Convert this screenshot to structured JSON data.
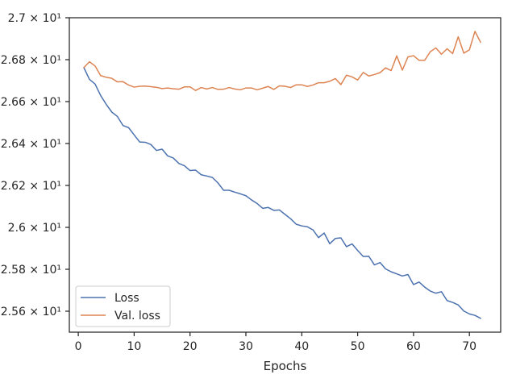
{
  "chart_data": {
    "type": "line",
    "title": "",
    "xlabel": "Epochs",
    "ylabel": "",
    "xlim": [
      -1.6,
      75.6
    ],
    "ylim": [
      25.5,
      27.0
    ],
    "xticks": [
      0,
      10,
      20,
      30,
      40,
      50,
      60,
      70
    ],
    "xtick_labels": [
      "0",
      "10",
      "20",
      "30",
      "40",
      "50",
      "60",
      "70"
    ],
    "yticks": [
      25.6,
      25.8,
      26.0,
      26.2,
      26.4,
      26.6,
      26.8,
      27.0
    ],
    "ytick_labels": [
      "2.56 × 10¹",
      "2.58 × 10¹",
      "2.6 × 10¹",
      "2.62 × 10¹",
      "2.64 × 10¹",
      "2.66 × 10¹",
      "2.68 × 10¹",
      "2.7 × 10¹"
    ],
    "grid": false,
    "legend_position": "lower-left",
    "x": [
      1,
      2,
      3,
      4,
      5,
      6,
      7,
      8,
      9,
      10,
      11,
      12,
      13,
      14,
      15,
      16,
      17,
      18,
      19,
      20,
      21,
      22,
      23,
      24,
      25,
      26,
      27,
      28,
      29,
      30,
      31,
      32,
      33,
      34,
      35,
      36,
      37,
      38,
      39,
      40,
      41,
      42,
      43,
      44,
      45,
      46,
      47,
      48,
      49,
      50,
      51,
      52,
      53,
      54,
      55,
      56,
      57,
      58,
      59,
      60,
      61,
      62,
      63,
      64,
      65,
      66,
      67,
      68,
      69,
      70,
      71,
      72
    ],
    "series": [
      {
        "name": "Loss",
        "color": "#4c72b0",
        "values": [
          26.762,
          26.706,
          26.684,
          26.629,
          26.587,
          26.55,
          26.529,
          26.486,
          26.476,
          26.441,
          26.407,
          26.406,
          26.395,
          26.367,
          26.373,
          26.341,
          26.331,
          26.305,
          26.294,
          26.271,
          26.273,
          26.251,
          26.245,
          26.238,
          26.212,
          26.177,
          26.177,
          26.168,
          26.16,
          26.151,
          26.131,
          26.114,
          26.091,
          26.095,
          26.081,
          26.083,
          26.062,
          26.041,
          26.015,
          26.007,
          26.003,
          25.988,
          25.951,
          25.973,
          25.922,
          25.947,
          25.95,
          25.908,
          25.921,
          25.89,
          25.861,
          25.862,
          25.821,
          25.832,
          25.802,
          25.788,
          25.778,
          25.768,
          25.775,
          25.727,
          25.739,
          25.715,
          25.696,
          25.686,
          25.693,
          25.651,
          25.642,
          25.63,
          25.601,
          25.587,
          25.58,
          25.566
        ]
      },
      {
        "name": "Val. loss",
        "color": "#dd8452",
        "values": [
          26.762,
          26.79,
          26.77,
          26.724,
          26.716,
          26.711,
          26.694,
          26.695,
          26.679,
          26.669,
          26.673,
          26.674,
          26.671,
          26.668,
          26.662,
          26.665,
          26.661,
          26.659,
          26.67,
          26.67,
          26.653,
          26.667,
          26.66,
          26.667,
          26.658,
          26.659,
          26.667,
          26.66,
          26.656,
          26.665,
          26.665,
          26.656,
          26.664,
          26.672,
          26.658,
          26.675,
          26.673,
          26.667,
          26.68,
          26.68,
          26.672,
          26.679,
          26.69,
          26.69,
          26.697,
          26.71,
          26.681,
          26.726,
          26.718,
          26.703,
          26.739,
          26.722,
          26.729,
          26.738,
          26.761,
          26.748,
          26.818,
          26.75,
          26.813,
          26.819,
          26.797,
          26.797,
          26.838,
          26.856,
          26.826,
          26.852,
          26.829,
          26.909,
          26.831,
          26.847,
          26.935,
          26.883
        ]
      }
    ]
  }
}
